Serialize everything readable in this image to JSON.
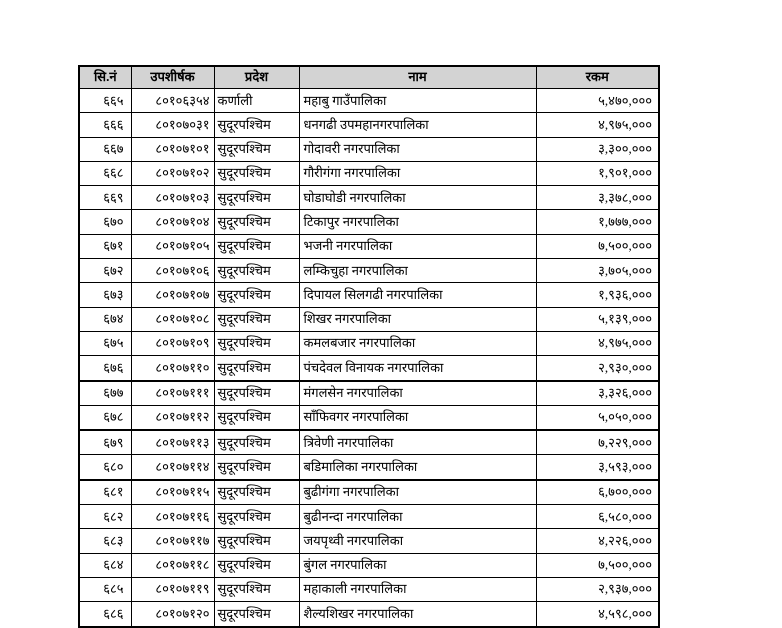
{
  "colors": {
    "header_bg": "#d3d3d3",
    "border": "#000000",
    "page_bg": "#ffffff"
  },
  "table": {
    "headers": [
      "सि.नं",
      "उपशीर्षक",
      "प्रदेश",
      "नाम",
      "रकम"
    ],
    "rows": [
      [
        "६६५",
        "८०१०६३५४",
        "कर्णाली",
        "महाबु गाउँपालिका",
        "५,४७०,०००"
      ],
      [
        "६६६",
        "८०१०७०३१",
        "सुदूरपश्चिम",
        "धनगढी उपमहानगरपालिका",
        "४,९७५,०००"
      ],
      [
        "६६७",
        "८०१०७१०१",
        "सुदूरपश्चिम",
        "गोदावरी नगरपालिका",
        "३,३००,०००"
      ],
      [
        "६६८",
        "८०१०७१०२",
        "सुदूरपश्चिम",
        "गौरीगंगा नगरपालिका",
        "१,९०१,०००"
      ],
      [
        "६६९",
        "८०१०७१०३",
        "सुदूरपश्चिम",
        "घोडाघोडी नगरपालिका",
        "३,३७८,०००"
      ],
      [
        "६७०",
        "८०१०७१०४",
        "सुदूरपश्चिम",
        "टिकापुर नगरपालिका",
        "१,७७७,०००"
      ],
      [
        "६७१",
        "८०१०७१०५",
        "सुदूरपश्चिम",
        "भजनी नगरपालिका",
        "७,५००,०००"
      ],
      [
        "६७२",
        "८०१०७१०६",
        "सुदूरपश्चिम",
        "लम्किचुहा नगरपालिका",
        "३,७०५,०००"
      ],
      [
        "६७३",
        "८०१०७१०७",
        "सुदूरपश्चिम",
        "दिपायल सिलगढी नगरपालिका",
        "१,९३६,०००"
      ],
      [
        "६७४",
        "८०१०७१०८",
        "सुदूरपश्चिम",
        "शिखर नगरपालिका",
        "५,१३९,०००"
      ],
      [
        "६७५",
        "८०१०७१०९",
        "सुदूरपश्चिम",
        "कमलबजार नगरपालिका",
        "४,९७५,०००"
      ],
      [
        "६७६",
        "८०१०७११०",
        "सुदूरपश्चिम",
        "पंचदेवल विनायक नगरपालिका",
        "२,९३०,०००"
      ],
      [
        "६७७",
        "८०१०७१११",
        "सुदूरपश्चिम",
        "मंगलसेन नगरपालिका",
        "३,३२६,०००"
      ],
      [
        "६७८",
        "८०१०७११२",
        "सुदूरपश्चिम",
        "साँफिवगर नगरपालिका",
        "५,०५०,०००"
      ],
      [
        "६७९",
        "८०१०७११३",
        "सुदूरपश्चिम",
        "त्रिवेणी नगरपालिका",
        "७,२२९,०००"
      ],
      [
        "६८०",
        "८०१०७११४",
        "सुदूरपश्चिम",
        "बडिमालिका नगरपालिका",
        "३,५९३,०००"
      ],
      [
        "६८१",
        "८०१०७११५",
        "सुदूरपश्चिम",
        "बुढीगंगा नगरपालिका",
        "६,७००,०००"
      ],
      [
        "६८२",
        "८०१०७११६",
        "सुदूरपश्चिम",
        "बुढीनन्दा नगरपालिका",
        "६,५८०,०००"
      ],
      [
        "६८३",
        "८०१०७११७",
        "सुदूरपश्चिम",
        "जयपृथ्वी नगरपालिका",
        "४,२२६,०००"
      ],
      [
        "६८४",
        "८०१०७११८",
        "सुदूरपश्चिम",
        "बुंगल नगरपालिका",
        "७,५००,०००"
      ],
      [
        "६८५",
        "८०१०७११९",
        "सुदूरपश्चिम",
        "महाकाली नगरपालिका",
        "२,९३७,०००"
      ],
      [
        "६८६",
        "८०१०७१२०",
        "सुदूरपश्चिम",
        "शैल्यशिखर नगरपालिका",
        "४,५९८,०००"
      ]
    ]
  }
}
